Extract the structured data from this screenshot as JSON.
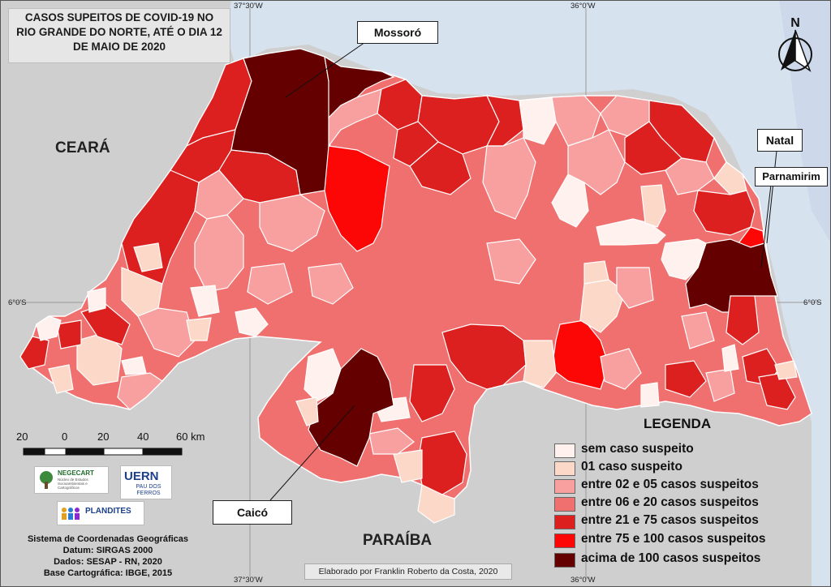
{
  "title_lines": [
    "CASOS SUPEITOS DE COVID-19 NO",
    "RIO GRANDE DO NORTE, ATÉ O DIA 12",
    "DE MAIO DE 2020"
  ],
  "callouts": {
    "mossoro": "Mossoró",
    "natal": "Natal",
    "parnamirim": "Parnamirim",
    "caico": "Caicó"
  },
  "regions": {
    "ceara": "CEARÁ",
    "paraiba": "PARAÍBA"
  },
  "coords": {
    "lon_top_left": "37°30'W",
    "lon_top_right": "36°0'W",
    "lon_bottom_left": "37°30'W",
    "lon_bottom_right": "36°0'W",
    "lat_left": "6°0'S",
    "lat_right": "6°0'S"
  },
  "north_label": "N",
  "legend": {
    "title": "LEGENDA",
    "items": [
      {
        "label": "sem caso suspeito",
        "color": "#fff2ee"
      },
      {
        "label": "01 caso suspeito",
        "color": "#fcd8c8"
      },
      {
        "label": "entre 02 e 05 casos suspeitos",
        "color": "#f8a0a0"
      },
      {
        "label": "entre 06 e 20 casos suspeitos",
        "color": "#f07070"
      },
      {
        "label": "entre 21 e 75 casos suspeitos",
        "color": "#dc2020"
      },
      {
        "label": "entre 75 e 100 casos suspeitos",
        "color": "#fc0606"
      },
      {
        "label": "acima de 100 casos suspeitos",
        "color": "#640000"
      }
    ]
  },
  "scale": {
    "labels": [
      "20",
      "0",
      "20",
      "40",
      "60 km"
    ]
  },
  "logos": {
    "negecart": "NEGECART",
    "negecart_sub": "Núcleo de Estudos Socioambientais e Cartográficos",
    "uern": "UERN",
    "uern_sub": "PAU DOS FERROS",
    "plandites": "PLANDITES"
  },
  "info_lines": [
    "Sistema de Coordenadas Geográficas",
    "Datum: SIRGAS 2000",
    "Dados: SESAP - RN, 2020",
    "Base Cartográfica: IBGE, 2015"
  ],
  "credit": "Elaborado por Franklin Roberto da Costa, 2020",
  "colors": {
    "ocean": "#d7e2ef",
    "land": "#cfcfcf",
    "state_base": "#f07070"
  }
}
